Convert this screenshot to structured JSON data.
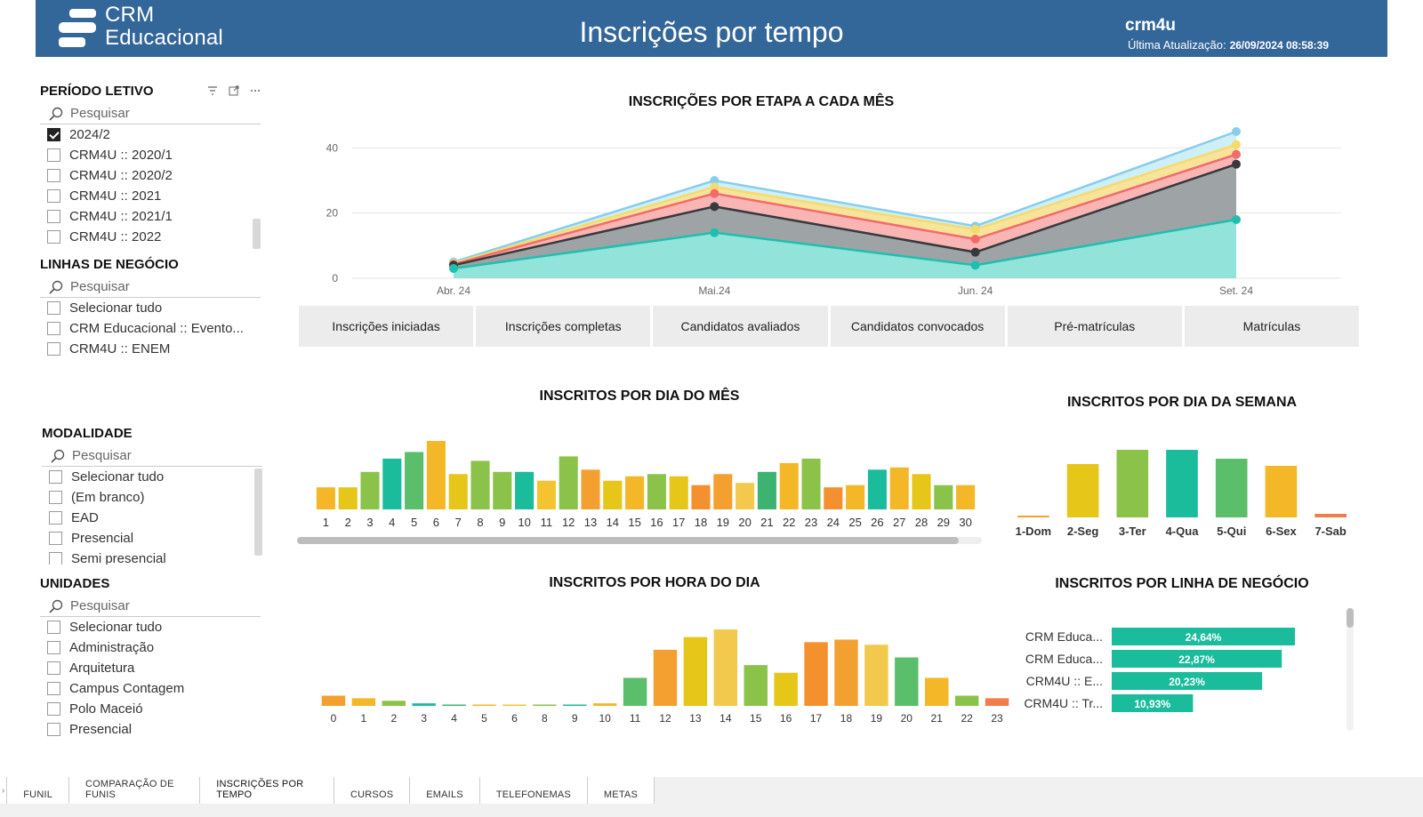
{
  "header": {
    "brand_line1": "CRM",
    "brand_line2": "Educacional",
    "title": "Inscrições por tempo",
    "org": "crm4u",
    "update_label": "Última Atualização:",
    "update_value": "26/09/2024 08:58:39",
    "colors": {
      "bar": "#336699"
    }
  },
  "slicers": {
    "periodo": {
      "title": "PERÍODO LETIVO",
      "search_placeholder": "Pesquisar",
      "tools": [
        "filter-icon",
        "expand-icon",
        "more-icon"
      ],
      "options": [
        {
          "label": "2024/2",
          "checked": true
        },
        {
          "label": "CRM4U :: 2020/1",
          "checked": false
        },
        {
          "label": "CRM4U :: 2020/2",
          "checked": false
        },
        {
          "label": "CRM4U :: 2021",
          "checked": false
        },
        {
          "label": "CRM4U :: 2021/1",
          "checked": false
        },
        {
          "label": "CRM4U :: 2022",
          "checked": false
        }
      ]
    },
    "linhas": {
      "title": "LINHAS DE NEGÓCIO",
      "search_placeholder": "Pesquisar",
      "options": [
        {
          "label": "Selecionar tudo",
          "checked": false
        },
        {
          "label": "CRM Educacional :: Evento...",
          "checked": false
        },
        {
          "label": "CRM4U :: ENEM",
          "checked": false
        }
      ]
    },
    "modalidade": {
      "title": "MODALIDADE",
      "search_placeholder": "Pesquisar",
      "options": [
        {
          "label": "Selecionar tudo",
          "checked": false
        },
        {
          "label": "(Em branco)",
          "checked": false
        },
        {
          "label": "EAD",
          "checked": false
        },
        {
          "label": "Presencial",
          "checked": false
        },
        {
          "label": "Semi presencial",
          "checked": false
        }
      ]
    },
    "unidades": {
      "title": "UNIDADES",
      "search_placeholder": "Pesquisar",
      "options": [
        {
          "label": "Selecionar tudo",
          "checked": false
        },
        {
          "label": "Administração",
          "checked": false
        },
        {
          "label": "Arquitetura",
          "checked": false
        },
        {
          "label": "Campus Contagem",
          "checked": false
        },
        {
          "label": "Polo Maceió",
          "checked": false
        },
        {
          "label": "Presencial",
          "checked": false
        }
      ]
    }
  },
  "legend_buttons": [
    "Inscrições iniciadas",
    "Inscrições completas",
    "Candidatos avaliados",
    "Candidatos convocados",
    "Pré-matrículas",
    "Matrículas"
  ],
  "chart_data": [
    {
      "type": "area",
      "title": "INSCRIÇÕES POR ETAPA A CADA MÊS",
      "categories": [
        "Abr. 24",
        "Mai.24",
        "Jun. 24",
        "Set. 24"
      ],
      "ylim": [
        0,
        45
      ],
      "yticks": [
        0,
        20,
        40
      ],
      "grid": true,
      "series": [
        {
          "values": [
            5,
            30,
            16,
            45
          ],
          "color": "#87CEEB"
        },
        {
          "values": [
            4.6,
            28,
            15,
            41
          ],
          "color": "#F5DB6B"
        },
        {
          "values": [
            4.3,
            26,
            12,
            38
          ],
          "color": "#F26B6B"
        },
        {
          "values": [
            4,
            22,
            8,
            35
          ],
          "color": "#373A3C"
        },
        {
          "values": [
            3,
            14,
            4,
            18
          ],
          "color": "#1FBFAE"
        }
      ],
      "area_colors": [
        "#CFEFF7",
        "#F8E39A",
        "#F9B4B4",
        "#9EA3A6",
        "#92E3DA"
      ]
    },
    {
      "type": "bar",
      "title": "INSCRITOS POR DIA DO MÊS",
      "categories": [
        "1",
        "2",
        "3",
        "4",
        "5",
        "6",
        "7",
        "8",
        "9",
        "10",
        "11",
        "12",
        "13",
        "14",
        "15",
        "16",
        "17",
        "18",
        "19",
        "20",
        "21",
        "22",
        "23",
        "24",
        "25",
        "26",
        "27",
        "28",
        "29",
        "30"
      ],
      "values": [
        10,
        10,
        17,
        23,
        26,
        31,
        16,
        22,
        17,
        17,
        13,
        24,
        18,
        13,
        15,
        16,
        15,
        11,
        16,
        12,
        17,
        21,
        23,
        10,
        11,
        18,
        19,
        16,
        11,
        11
      ],
      "colors": [
        "#F4B728",
        "#E6C619",
        "#8BC34A",
        "#1ABC9C",
        "#5BBE6A",
        "#F4B728",
        "#E6C619",
        "#8BC34A",
        "#8BC34A",
        "#1ABC9C",
        "#F4C430",
        "#8BC34A",
        "#F4A030",
        "#E6C619",
        "#F4B728",
        "#8BC34A",
        "#E6C619",
        "#F4902D",
        "#F4A030",
        "#F2C94C",
        "#3CB371",
        "#F4B728",
        "#8BC34A",
        "#F4902D",
        "#F4B728",
        "#1ABC9C",
        "#F4B728",
        "#E6C619",
        "#8BC34A",
        "#F4B728"
      ]
    },
    {
      "type": "bar",
      "title": "INSCRITOS POR DIA DA SEMANA",
      "categories": [
        "1-Dom",
        "2-Seg",
        "3-Ter",
        "4-Qua",
        "5-Qui",
        "6-Sex",
        "7-Sab"
      ],
      "values": [
        1,
        30,
        38,
        38,
        33,
        29,
        2
      ],
      "colors": [
        "#F4A030",
        "#E6C619",
        "#8BC34A",
        "#1ABC9C",
        "#5BBE6A",
        "#F4B728",
        "#F47B4A"
      ]
    },
    {
      "type": "bar",
      "title": "INSCRITOS POR HORA DO DIA",
      "categories": [
        "0",
        "1",
        "2",
        "3",
        "4",
        "5",
        "6",
        "8",
        "9",
        "10",
        "11",
        "12",
        "13",
        "14",
        "15",
        "16",
        "17",
        "18",
        "19",
        "20",
        "21",
        "22",
        "23"
      ],
      "values": [
        4,
        3,
        2,
        1,
        0.5,
        0.5,
        0.5,
        0.5,
        0.5,
        1,
        11,
        22,
        27,
        30,
        16,
        13,
        25,
        26,
        24,
        19,
        11,
        4,
        3
      ],
      "colors": [
        "#F4A030",
        "#F4B728",
        "#8BC34A",
        "#1ABC9C",
        "#3CB371",
        "#F4B728",
        "#F4C430",
        "#8BC34A",
        "#1ABC9C",
        "#F4B728",
        "#5BBE6A",
        "#F4A030",
        "#E6C619",
        "#F2C94C",
        "#8BC34A",
        "#E6C619",
        "#F4902D",
        "#F4A030",
        "#F2C94C",
        "#5BBE6A",
        "#F4B728",
        "#8BC34A",
        "#F47B4A"
      ]
    },
    {
      "type": "bar",
      "title": "INSCRITOS POR LINHA DE NEGÓCIO",
      "orientation": "horizontal",
      "categories": [
        "CRM Educa...",
        "CRM Educa...",
        "CRM4U :: E...",
        "CRM4U :: Tr..."
      ],
      "values": [
        24.64,
        22.87,
        20.23,
        10.93
      ],
      "labels": [
        "24,64%",
        "22,87%",
        "20,23%",
        "10,93%"
      ],
      "color": "#1ABC9C"
    }
  ],
  "tabs": [
    {
      "label": "FUNIL",
      "active": false
    },
    {
      "label": "COMPARAÇÃO DE FUNIS",
      "active": false
    },
    {
      "label": "INSCRIÇÕES POR TEMPO",
      "active": true
    },
    {
      "label": "CURSOS",
      "active": false
    },
    {
      "label": "EMAILS",
      "active": false
    },
    {
      "label": "TELEFONEMAS",
      "active": false
    },
    {
      "label": "METAS",
      "active": false
    }
  ]
}
